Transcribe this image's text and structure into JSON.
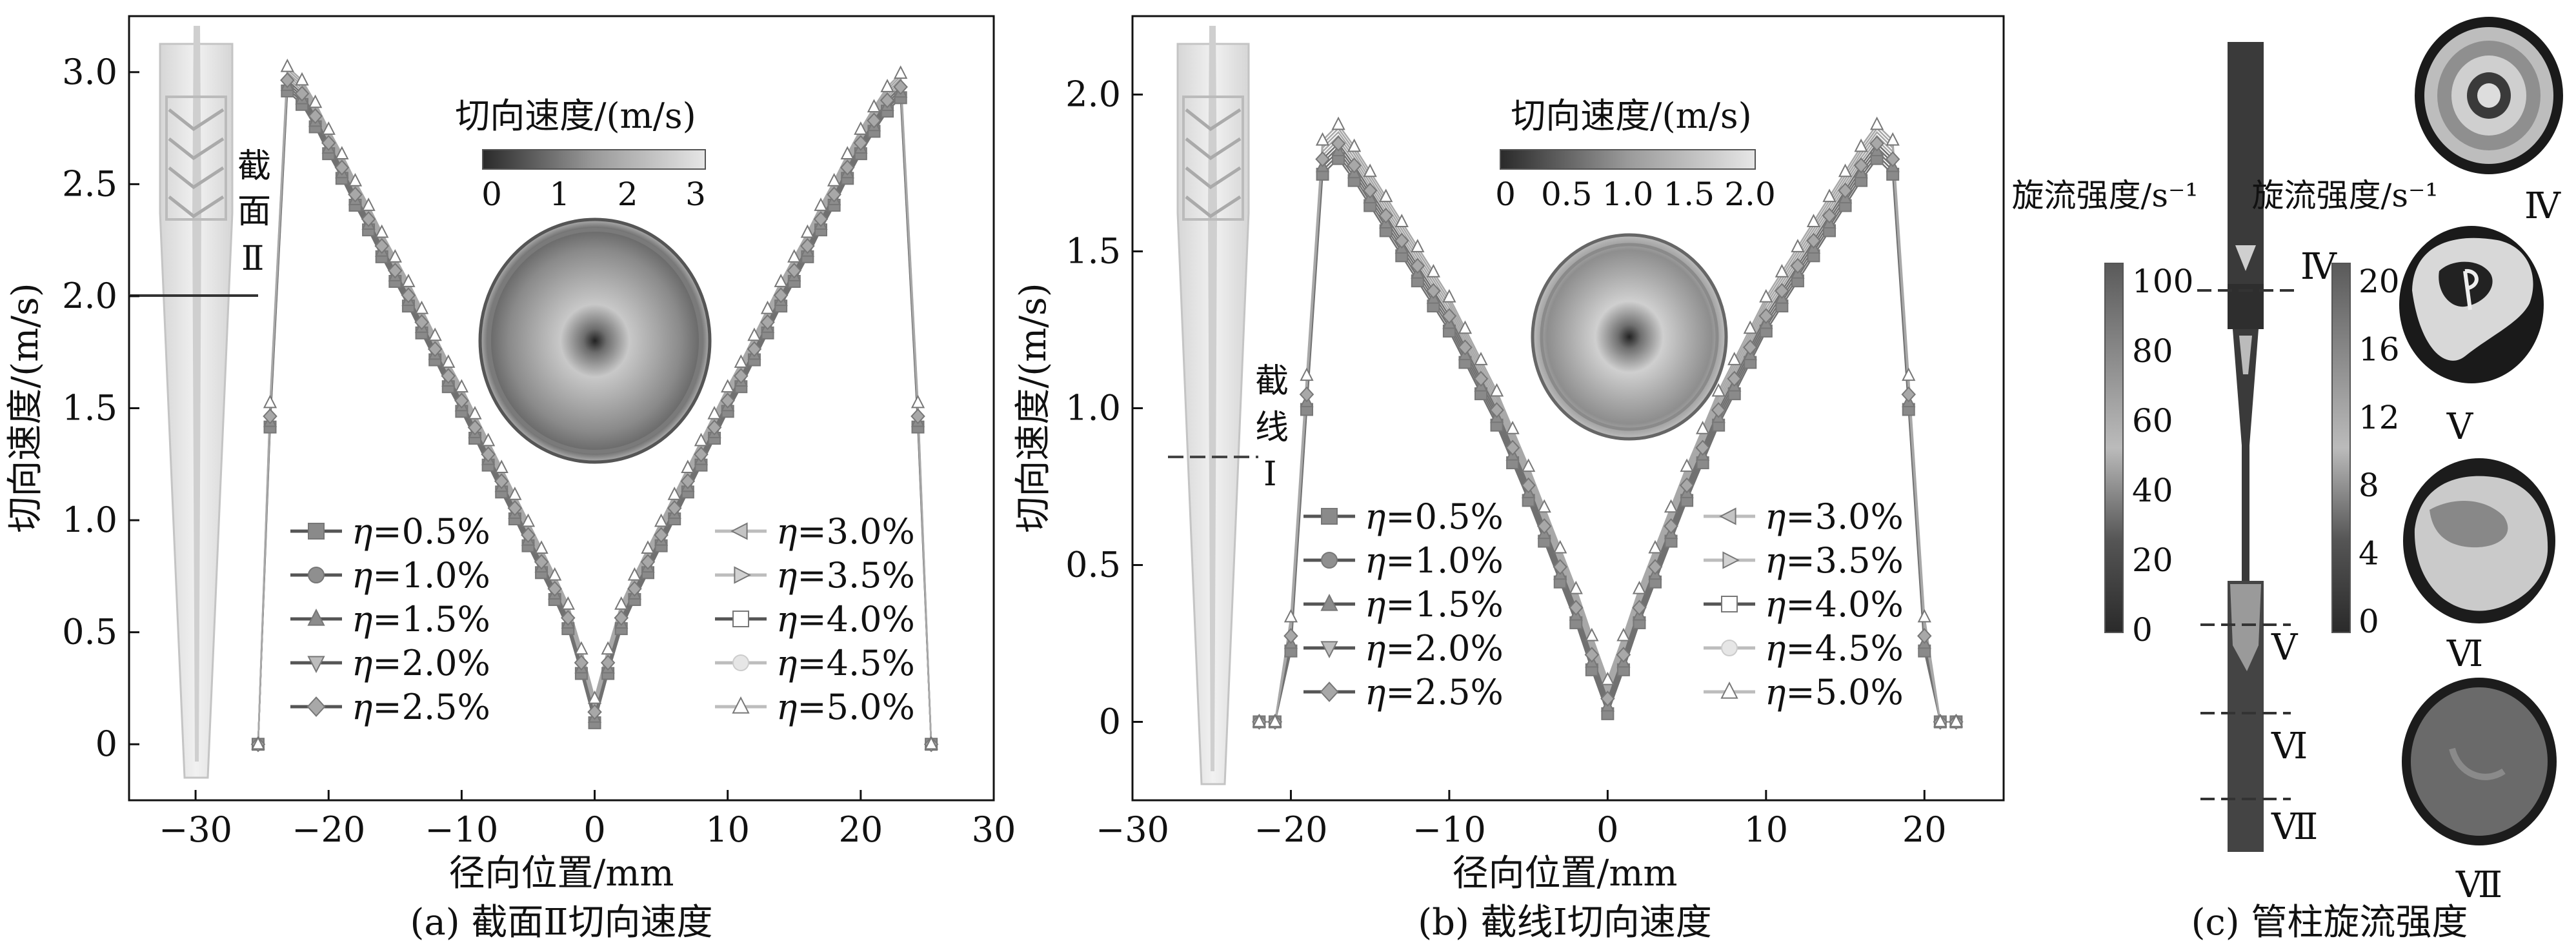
{
  "legend_labels": [
    "η=0.5%",
    "η=1.0%",
    "η=1.5%",
    "η=2.0%",
    "η=2.5%",
    "η=3.0%",
    "η=3.5%",
    "η=4.0%",
    "η=4.5%",
    "η=5.0%"
  ],
  "colors": {
    "frame": "#111111",
    "line_dark": "#555555",
    "line_light": "#aaaaaa",
    "tube": "#dddddd"
  },
  "chart_data": [
    {
      "type": "line",
      "caption": "(a) 截面Ⅱ切向速度",
      "xlabel": "径向位置/mm",
      "ylabel": "切向速度/(m/s)",
      "xlim": [
        -35,
        30
      ],
      "ylim": [
        -0.25,
        3.25
      ],
      "xticks": [
        -30,
        -20,
        -10,
        0,
        10,
        20,
        30
      ],
      "yticks": [
        0,
        0.5,
        1.0,
        1.5,
        2.0,
        2.5,
        3.0
      ],
      "ytick_labels": [
        "0",
        "0.5",
        "1.0",
        "1.5",
        "2.0",
        "2.5",
        "3.0"
      ],
      "inset_label": "截面Ⅱ",
      "inset_scalebar_title": "切向速度/(m/s)",
      "inset_scalebar_ticks": [
        "0",
        "1",
        "2",
        "3"
      ],
      "x": [
        -25.3,
        -24.4,
        -23.1,
        -22.0,
        -21.0,
        -20.0,
        -19.0,
        -18.0,
        -17.0,
        -16.0,
        -15.0,
        -14.0,
        -13.0,
        -12.0,
        -11.0,
        -10.0,
        -9.0,
        -8.0,
        -7.0,
        -6.0,
        -5.0,
        -4.0,
        -3.0,
        -2.0,
        -1.0,
        0.0,
        1.0,
        2.0,
        3.0,
        4.0,
        5.0,
        6.0,
        7.0,
        8.0,
        9.0,
        10.0,
        11.0,
        12.0,
        13.0,
        14.0,
        15.0,
        16.0,
        17.0,
        18.0,
        19.0,
        20.0,
        21.0,
        22.0,
        23.0,
        24.3,
        25.3
      ],
      "y": [
        0,
        1.47,
        2.97,
        2.91,
        2.81,
        2.69,
        2.58,
        2.46,
        2.35,
        2.23,
        2.12,
        2.01,
        1.89,
        1.77,
        1.65,
        1.54,
        1.42,
        1.3,
        1.18,
        1.06,
        0.94,
        0.82,
        0.7,
        0.57,
        0.37,
        0.15,
        0.37,
        0.57,
        0.7,
        0.82,
        0.94,
        1.06,
        1.18,
        1.3,
        1.42,
        1.54,
        1.65,
        1.77,
        1.89,
        2.01,
        2.12,
        2.23,
        2.35,
        2.46,
        2.58,
        2.69,
        2.79,
        2.88,
        2.94,
        1.47,
        0
      ]
    },
    {
      "type": "line",
      "caption": "(b) 截线Ⅰ切向速度",
      "xlabel": "径向位置/mm",
      "ylabel": "切向速度/(m/s)",
      "xlim": [
        -30,
        25
      ],
      "ylim": [
        -0.25,
        2.25
      ],
      "xticks": [
        -30,
        -20,
        -10,
        0,
        10,
        20
      ],
      "yticks": [
        0,
        0.5,
        1.0,
        1.5,
        2.0
      ],
      "ytick_labels": [
        "0",
        "0.5",
        "1.0",
        "1.5",
        "2.0"
      ],
      "inset_label": "截线Ⅰ",
      "inset_scalebar_title": "切向速度/(m/s)",
      "inset_scalebar_ticks": [
        "0",
        "0.5",
        "1.0",
        "1.5",
        "2.0"
      ],
      "x": [
        -22.0,
        -21.0,
        -20.0,
        -19.0,
        -18.0,
        -17.0,
        -16.0,
        -15.0,
        -14.0,
        -13.0,
        -12.0,
        -11.0,
        -10.0,
        -9.0,
        -8.0,
        -7.0,
        -6.0,
        -5.0,
        -4.0,
        -3.0,
        -2.0,
        -1.0,
        0.0,
        1.0,
        2.0,
        3.0,
        4.0,
        5.0,
        6.0,
        7.0,
        8.0,
        9.0,
        10.0,
        11.0,
        12.0,
        13.0,
        14.0,
        15.0,
        16.0,
        17.0,
        18.0,
        19.0,
        20.0,
        21.0,
        22.0
      ],
      "y": [
        0,
        0,
        0.28,
        1.05,
        1.8,
        1.85,
        1.78,
        1.7,
        1.62,
        1.54,
        1.46,
        1.38,
        1.3,
        1.2,
        1.1,
        1.0,
        0.88,
        0.76,
        0.63,
        0.5,
        0.37,
        0.22,
        0.08,
        0.22,
        0.37,
        0.5,
        0.63,
        0.76,
        0.88,
        1.0,
        1.1,
        1.2,
        1.3,
        1.38,
        1.46,
        1.54,
        1.62,
        1.7,
        1.78,
        1.85,
        1.8,
        1.05,
        0.28,
        0,
        0
      ]
    },
    {
      "type": "heatmap",
      "caption": "(c) 管柱旋流强度",
      "scalebars": [
        {
          "title": "旋流强度/s⁻¹",
          "ticks": [
            "0",
            "20",
            "40",
            "60",
            "80",
            "100"
          ]
        },
        {
          "title": "旋流强度/s⁻¹",
          "ticks": [
            "0",
            "4",
            "8",
            "12",
            "16",
            "20"
          ]
        }
      ],
      "section_labels": [
        "Ⅳ",
        "Ⅴ",
        "Ⅵ",
        "Ⅶ"
      ]
    }
  ]
}
